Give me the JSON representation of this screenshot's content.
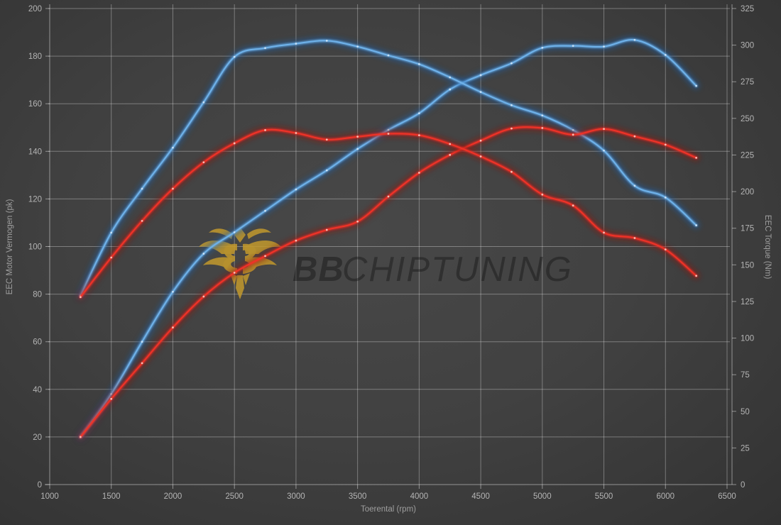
{
  "watermark": {
    "brand_bold": "BB",
    "brand_rest": "CHIPTUNING"
  },
  "colors": {
    "background": "#3f3f3f",
    "gridline": "rgba(255,255,255,0.32)",
    "tick_label": "#b4b4b4",
    "axis_title": "#9f9f9f",
    "blue_core": "#6fb2ea",
    "blue_glow": "#1c5ea8",
    "red_core": "#f03228",
    "red_glow": "#8e1410",
    "logo_gold": "#c49a2c"
  },
  "chart_data": {
    "type": "line",
    "title": "",
    "xlabel": "Toerental (rpm)",
    "ylabel_left": "EEC Motor Vermogen (pk)",
    "ylabel_right": "EEC Torque (Nm)",
    "xlim": [
      1000,
      6500
    ],
    "ylim_left": [
      0,
      200
    ],
    "ylim_right": [
      0,
      325
    ],
    "grid": true,
    "legend_position": "none",
    "x_ticks": [
      1000,
      1500,
      2000,
      2500,
      3000,
      3500,
      4000,
      4500,
      5000,
      5500,
      6000,
      6500
    ],
    "y_left_ticks": [
      0,
      20,
      40,
      60,
      80,
      100,
      120,
      140,
      160,
      180,
      200
    ],
    "y_right_ticks": [
      0,
      25,
      50,
      75,
      100,
      125,
      150,
      175,
      200,
      225,
      250,
      275,
      300,
      325
    ],
    "x": [
      1250,
      1500,
      1750,
      2000,
      2250,
      2500,
      2750,
      3000,
      3250,
      3500,
      3750,
      4000,
      4250,
      4500,
      4750,
      5000,
      5250,
      5500,
      5750,
      6000,
      6250
    ],
    "series": [
      {
        "id": "power-blue",
        "axis": "left",
        "color": "#6fb2ea",
        "glow": "#1c5ea8",
        "dot": "#cde4fa",
        "values": [
          20,
          38,
          60,
          81,
          97,
          106,
          115,
          124,
          132,
          141,
          149,
          156,
          166,
          172,
          177,
          183.5,
          184.3,
          184,
          186.8,
          180.5,
          167.5
        ]
      },
      {
        "id": "torque-blue",
        "axis": "right",
        "color": "#6fb2ea",
        "glow": "#1c5ea8",
        "dot": "#cde4fa",
        "values": [
          129,
          172,
          202,
          230,
          261,
          292,
          298,
          301,
          303,
          299,
          293,
          287,
          278,
          268,
          259,
          252,
          242,
          228,
          204,
          196,
          177
        ]
      },
      {
        "id": "power-red",
        "axis": "left",
        "color": "#f03228",
        "glow": "#8e1410",
        "dot": "#ffc9bf",
        "values": [
          20,
          36,
          51,
          66,
          79,
          89,
          96,
          102.5,
          107,
          110.5,
          121,
          131,
          138.5,
          144.5,
          149.6,
          149.8,
          147,
          149.4,
          146.3,
          142.8,
          137.3
        ]
      },
      {
        "id": "torque-red",
        "axis": "right",
        "color": "#f03228",
        "glow": "#8e1410",
        "dot": "#ffc9bf",
        "values": [
          128,
          155,
          180,
          202,
          220,
          233,
          242,
          240,
          235.5,
          237.5,
          239.5,
          238.5,
          232.5,
          224,
          213.5,
          198,
          190.5,
          172,
          168.3,
          160.5,
          142.5
        ]
      }
    ]
  }
}
